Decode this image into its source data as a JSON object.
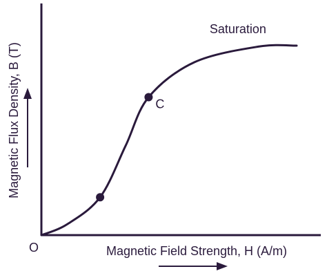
{
  "chart_data": {
    "type": "line",
    "title": "",
    "xlabel": "Magnetic Field Strength, H (A/m)",
    "ylabel": "Magnetic Flux Density, B (T)",
    "origin_label": "O",
    "grid": false,
    "legend": "none",
    "series": [
      {
        "values": [
          {
            "x": 0.0,
            "y": 0.0
          },
          {
            "x": 0.1,
            "y": 0.055
          },
          {
            "x": 0.23,
            "y": 0.195
          },
          {
            "x": 0.33,
            "y": 0.46
          },
          {
            "x": 0.42,
            "y": 0.71
          },
          {
            "x": 0.6,
            "y": 0.89
          },
          {
            "x": 0.85,
            "y": 0.97
          },
          {
            "x": 1.0,
            "y": 0.975
          }
        ]
      }
    ],
    "points": [
      {
        "x": 0.23,
        "y": 0.195,
        "label": ""
      },
      {
        "x": 0.42,
        "y": 0.71,
        "label": "C"
      }
    ],
    "annotations": [
      {
        "text": "Saturation",
        "x": 0.77,
        "y": 1.04
      }
    ],
    "colors": {
      "line": "#2a1a3c",
      "text": "#2a1a3c"
    }
  }
}
